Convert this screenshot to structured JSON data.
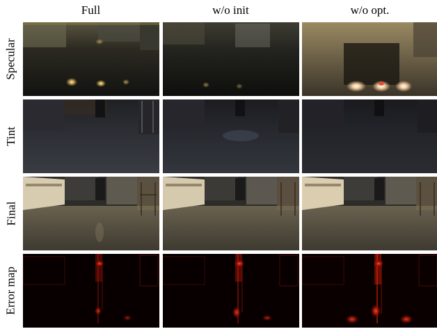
{
  "columns": [
    "Full",
    "w/o init",
    "w/o opt."
  ],
  "rows": [
    {
      "label": "Specular"
    },
    {
      "label": "Tint"
    },
    {
      "label": "Final"
    },
    {
      "label": "Error map"
    }
  ],
  "colors": {
    "specular_base": "#1c1a14",
    "tint_base": "#1e2026",
    "final_wall": "#d8ccb0",
    "final_floor": "#4a4538",
    "error_base": "#080000",
    "error_hot": "#ff3a12"
  }
}
